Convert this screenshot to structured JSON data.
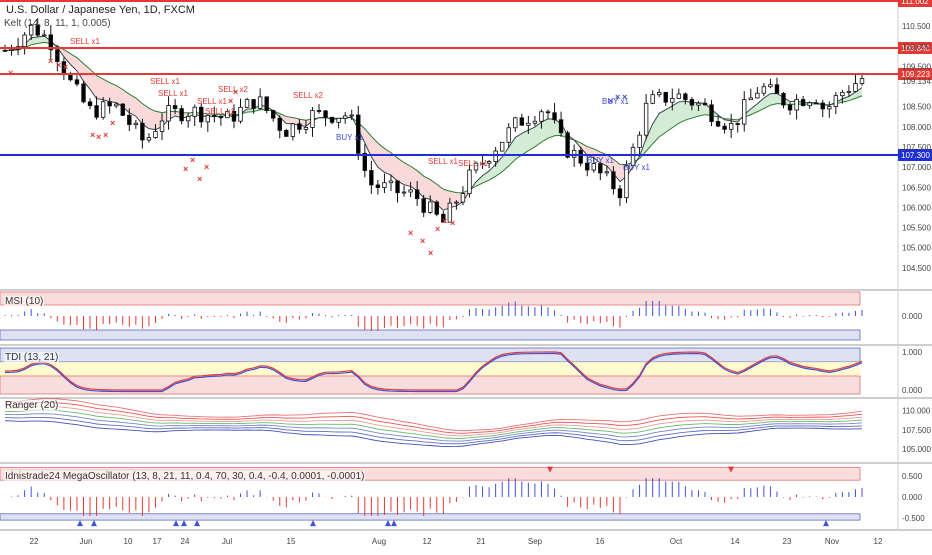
{
  "chart_data": [
    {
      "type": "candlestick",
      "title": "U.S. Dollar / Japanese Yen, 1D, FXCM",
      "indicator_label": "Kelt (14, 8, 11, 1, 0.005)",
      "x_tick_labels": [
        "22",
        "Jun",
        "10",
        "17",
        "24",
        "Jul",
        "15",
        "Aug",
        "12",
        "21",
        "Sep",
        "16",
        "Oct",
        "14",
        "23",
        "Nov",
        "12"
      ],
      "y_tick_labels": [
        "110.500",
        "110.000",
        "109.500",
        "109.134",
        "108.500",
        "108.000",
        "107.500",
        "107.000",
        "106.500",
        "106.000",
        "105.500",
        "105.000",
        "104.500"
      ],
      "horizontal_levels": [
        {
          "label": "111.002",
          "color": "#e53935"
        },
        {
          "label": "109.840",
          "color": "#e53935"
        },
        {
          "label": "109.223",
          "color": "#e53935"
        },
        {
          "label": "107.300",
          "color": "#1e2fd6"
        }
      ],
      "trade_labels": [
        "SELL x1",
        "SELL x1",
        "SELL x1",
        "SELL x1",
        "SELL x2",
        "SELL x1",
        "SELL x2",
        "BUY x1",
        "SELL x1",
        "SELL x1",
        "BUY x1",
        "BUY x1",
        "BUY x1"
      ],
      "ylim": [
        104.1,
        111.1
      ]
    },
    {
      "type": "histogram",
      "title": "MSI (10)",
      "y_tick_labels": [
        "0.000"
      ]
    },
    {
      "type": "line",
      "title": "TDI (13, 21)",
      "y_tick_labels": [
        "1.000",
        "0.000"
      ]
    },
    {
      "type": "line",
      "title": "Ranger (20)",
      "y_tick_labels": [
        "110.000",
        "107.500",
        "105.000"
      ]
    },
    {
      "type": "histogram",
      "title": "Idnistrade24 MegaOscillator (13, 8, 21, 11, 0.4, 70, 30, 0.4, -0.4, 0.0001, -0.0001)",
      "y_tick_labels": [
        "0.500",
        "0.000",
        "-0.500"
      ]
    }
  ],
  "colors": {
    "bull": "#ffffff",
    "bear": "#000000",
    "sell_marker": "#e53935",
    "buy_marker": "#3f4bd8",
    "red_line": "#e53935",
    "blue_line": "#1e2fd6"
  }
}
